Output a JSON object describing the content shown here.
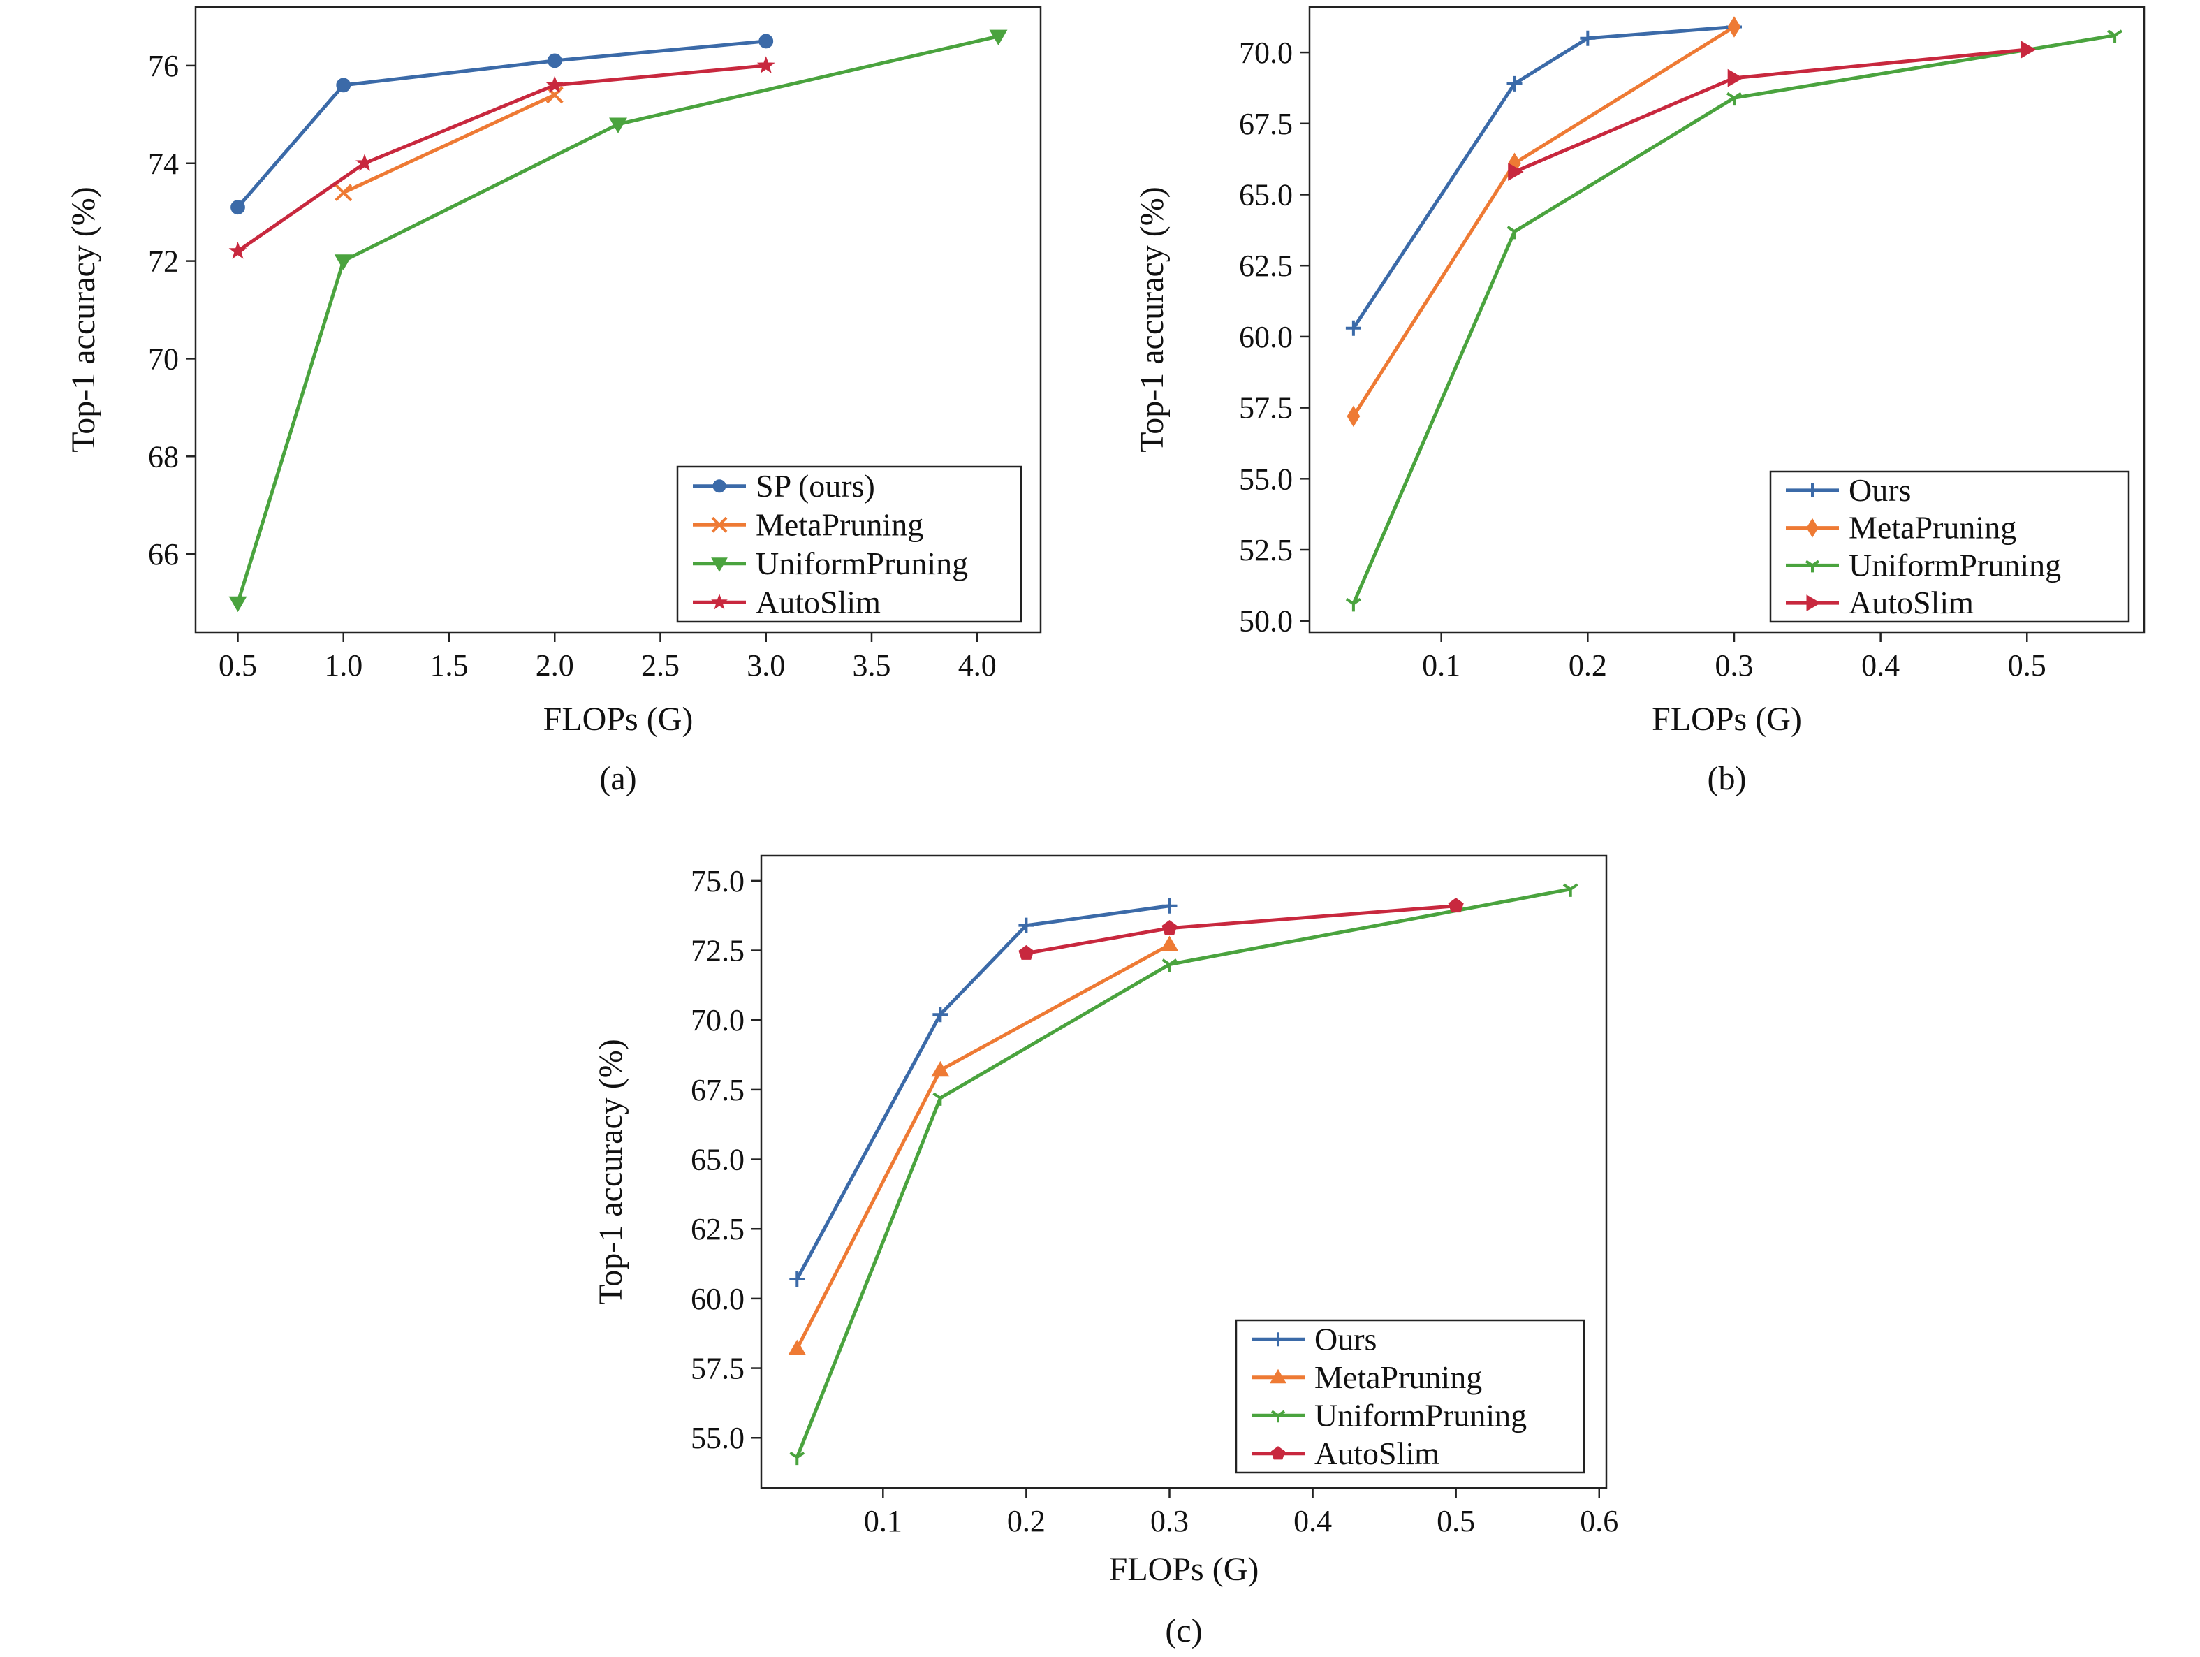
{
  "chart_data": [
    {
      "type": "line",
      "caption": "(a)",
      "xlabel": "FLOPs (G)",
      "ylabel": "Top-1 accuracy (%)",
      "xlim": [
        0.3,
        4.3
      ],
      "ylim": [
        64.4,
        77.2
      ],
      "xticks": [
        0.5,
        1.0,
        1.5,
        2.0,
        2.5,
        3.0,
        3.5,
        4.0
      ],
      "xtick_labels": [
        "0.5",
        "1.0",
        "1.5",
        "2.0",
        "2.5",
        "3.0",
        "3.5",
        "4.0"
      ],
      "yticks": [
        66,
        68,
        70,
        72,
        74,
        76
      ],
      "ytick_labels": [
        "66",
        "68",
        "70",
        "72",
        "74",
        "76"
      ],
      "grid": false,
      "legend_position": "bottom-right",
      "series": [
        {
          "name": "SP (ours)",
          "color": "#3b6aa8",
          "marker": "circle",
          "x": [
            0.5,
            1.0,
            2.0,
            3.0
          ],
          "y": [
            73.1,
            75.6,
            76.1,
            76.5
          ]
        },
        {
          "name": "MetaPruning",
          "color": "#ee7a34",
          "marker": "x",
          "x": [
            1.0,
            2.0
          ],
          "y": [
            73.4,
            75.4
          ]
        },
        {
          "name": "UniformPruning",
          "color": "#4aa33e",
          "marker": "triangle-down",
          "x": [
            0.5,
            1.0,
            2.3,
            4.1
          ],
          "y": [
            65.0,
            72.0,
            74.8,
            76.6
          ]
        },
        {
          "name": "AutoSlim",
          "color": "#c8283e",
          "marker": "star",
          "x": [
            0.5,
            1.1,
            2.0,
            3.0
          ],
          "y": [
            72.2,
            74.0,
            75.6,
            76.0
          ]
        }
      ]
    },
    {
      "type": "line",
      "caption": "(b)",
      "xlabel": "FLOPs (G)",
      "ylabel": "Top-1 accuracy (%)",
      "xlim": [
        0.01,
        0.58
      ],
      "ylim": [
        49.6,
        71.6
      ],
      "xticks": [
        0.1,
        0.2,
        0.3,
        0.4,
        0.5
      ],
      "xtick_labels": [
        "0.1",
        "0.2",
        "0.3",
        "0.4",
        "0.5"
      ],
      "yticks": [
        50.0,
        52.5,
        55.0,
        57.5,
        60.0,
        62.5,
        65.0,
        67.5,
        70.0
      ],
      "ytick_labels": [
        "50.0",
        "52.5",
        "55.0",
        "57.5",
        "60.0",
        "62.5",
        "65.0",
        "67.5",
        "70.0"
      ],
      "grid": false,
      "legend_position": "bottom-right",
      "series": [
        {
          "name": "Ours",
          "color": "#3b6aa8",
          "marker": "plus",
          "x": [
            0.04,
            0.15,
            0.2,
            0.3
          ],
          "y": [
            60.3,
            68.9,
            70.5,
            70.9
          ]
        },
        {
          "name": "MetaPruning",
          "color": "#ee7a34",
          "marker": "diamond",
          "x": [
            0.04,
            0.15,
            0.3
          ],
          "y": [
            57.2,
            66.1,
            70.9
          ]
        },
        {
          "name": "UniformPruning",
          "color": "#4aa33e",
          "marker": "tri-down",
          "x": [
            0.04,
            0.15,
            0.3,
            0.56
          ],
          "y": [
            50.6,
            63.7,
            68.4,
            70.6
          ]
        },
        {
          "name": "AutoSlim",
          "color": "#c8283e",
          "marker": "triangle-right",
          "x": [
            0.15,
            0.3,
            0.5
          ],
          "y": [
            65.8,
            69.1,
            70.1
          ]
        }
      ]
    },
    {
      "type": "line",
      "caption": "(c)",
      "xlabel": "FLOPs (G)",
      "ylabel": "Top-1 accuracy (%)",
      "xlim": [
        0.015,
        0.605
      ],
      "ylim": [
        53.2,
        75.9
      ],
      "xticks": [
        0.1,
        0.2,
        0.3,
        0.4,
        0.5,
        0.6
      ],
      "xtick_labels": [
        "0.1",
        "0.2",
        "0.3",
        "0.4",
        "0.5",
        "0.6"
      ],
      "yticks": [
        55.0,
        57.5,
        60.0,
        62.5,
        65.0,
        67.5,
        70.0,
        72.5,
        75.0
      ],
      "ytick_labels": [
        "55.0",
        "57.5",
        "60.0",
        "62.5",
        "65.0",
        "67.5",
        "70.0",
        "72.5",
        "75.0"
      ],
      "grid": false,
      "legend_position": "bottom-right",
      "series": [
        {
          "name": "Ours",
          "color": "#3b6aa8",
          "marker": "plus",
          "x": [
            0.04,
            0.14,
            0.2,
            0.3
          ],
          "y": [
            60.7,
            70.2,
            73.4,
            74.1
          ]
        },
        {
          "name": "MetaPruning",
          "color": "#ee7a34",
          "marker": "triangle-up",
          "x": [
            0.04,
            0.14,
            0.3
          ],
          "y": [
            58.2,
            68.2,
            72.7
          ]
        },
        {
          "name": "UniformPruning",
          "color": "#4aa33e",
          "marker": "tri-down",
          "x": [
            0.04,
            0.14,
            0.3,
            0.58
          ],
          "y": [
            54.3,
            67.2,
            72.0,
            74.7
          ]
        },
        {
          "name": "AutoSlim",
          "color": "#c8283e",
          "marker": "pentagon",
          "x": [
            0.2,
            0.3,
            0.5
          ],
          "y": [
            72.4,
            73.3,
            74.1
          ]
        }
      ]
    }
  ]
}
